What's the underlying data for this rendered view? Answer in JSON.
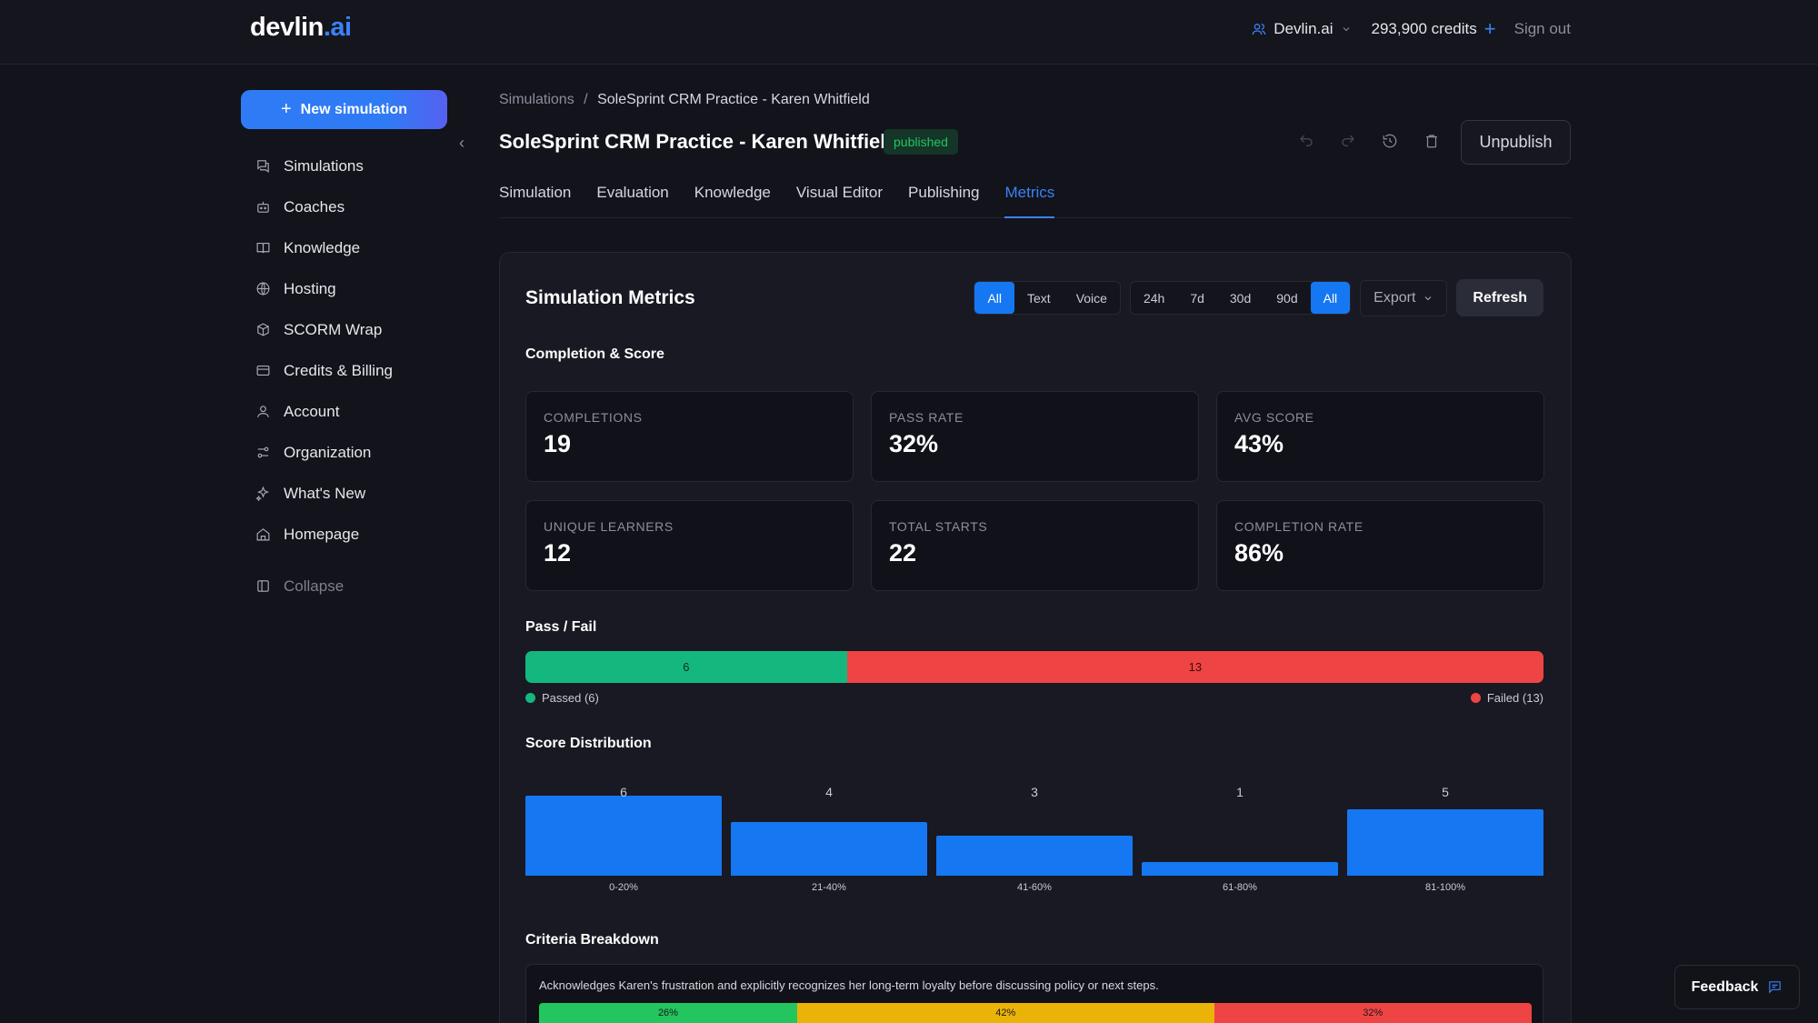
{
  "brand": {
    "name": "devlin",
    "suffix": ".ai",
    "accent": "#3b82f6"
  },
  "header": {
    "org": "Devlin.ai",
    "credits": "293,900 credits",
    "signout": "Sign out"
  },
  "sidebar": {
    "new_simulation": "New simulation",
    "items": [
      {
        "label": "Simulations",
        "icon": "chat-icon"
      },
      {
        "label": "Coaches",
        "icon": "bot-icon"
      },
      {
        "label": "Knowledge",
        "icon": "book-icon"
      },
      {
        "label": "Hosting",
        "icon": "globe-icon"
      },
      {
        "label": "SCORM Wrap",
        "icon": "package-icon"
      },
      {
        "label": "Credits & Billing",
        "icon": "card-icon"
      },
      {
        "label": "Account",
        "icon": "user-icon"
      },
      {
        "label": "Organization",
        "icon": "sliders-icon"
      },
      {
        "label": "What's New",
        "icon": "sparkles-icon"
      },
      {
        "label": "Homepage",
        "icon": "home-icon"
      }
    ],
    "collapse": "Collapse"
  },
  "breadcrumb": {
    "root": "Simulations",
    "sep": "/",
    "current": "SoleSprint CRM Practice - Karen Whitfield"
  },
  "page": {
    "title": "SoleSprint CRM Practice - Karen Whitfield",
    "status": "published",
    "unpublish": "Unpublish"
  },
  "tabs": [
    "Simulation",
    "Evaluation",
    "Knowledge",
    "Visual Editor",
    "Publishing",
    "Metrics"
  ],
  "metrics": {
    "title": "Simulation Metrics",
    "modes": [
      "All",
      "Text",
      "Voice"
    ],
    "ranges": [
      "24h",
      "7d",
      "30d",
      "90d",
      "All"
    ],
    "export": "Export",
    "refresh": "Refresh",
    "completion_heading": "Completion & Score",
    "stats": [
      {
        "label": "COMPLETIONS",
        "value": "19"
      },
      {
        "label": "PASS RATE",
        "value": "32%"
      },
      {
        "label": "AVG SCORE",
        "value": "43%"
      },
      {
        "label": "UNIQUE LEARNERS",
        "value": "12"
      },
      {
        "label": "TOTAL STARTS",
        "value": "22"
      },
      {
        "label": "COMPLETION RATE",
        "value": "86%"
      }
    ],
    "passfail_heading": "Pass / Fail",
    "passed": 6,
    "failed": 13,
    "passed_label": "Passed (6)",
    "failed_label": "Failed (13)",
    "pass_color": "#14b87f",
    "fail_color": "#ef4444",
    "distribution_heading": "Score Distribution",
    "criteria_heading": "Criteria Breakdown",
    "criteria": [
      {
        "text": "Acknowledges Karen's frustration and explicitly recognizes her long-term loyalty before discussing policy or next steps.",
        "segments": [
          {
            "label": "26%",
            "value": 26,
            "color": "#22c55e"
          },
          {
            "label": "42%",
            "value": 42,
            "color": "#eab308"
          },
          {
            "label": "32%",
            "value": 32,
            "color": "#ef4444"
          }
        ]
      }
    ]
  },
  "chart_data": {
    "type": "bar",
    "categories": [
      "0-20%",
      "21-40%",
      "41-60%",
      "61-80%",
      "81-100%"
    ],
    "values": [
      6,
      4,
      3,
      1,
      5
    ],
    "ylim": [
      0,
      6
    ]
  },
  "feedback": "Feedback"
}
